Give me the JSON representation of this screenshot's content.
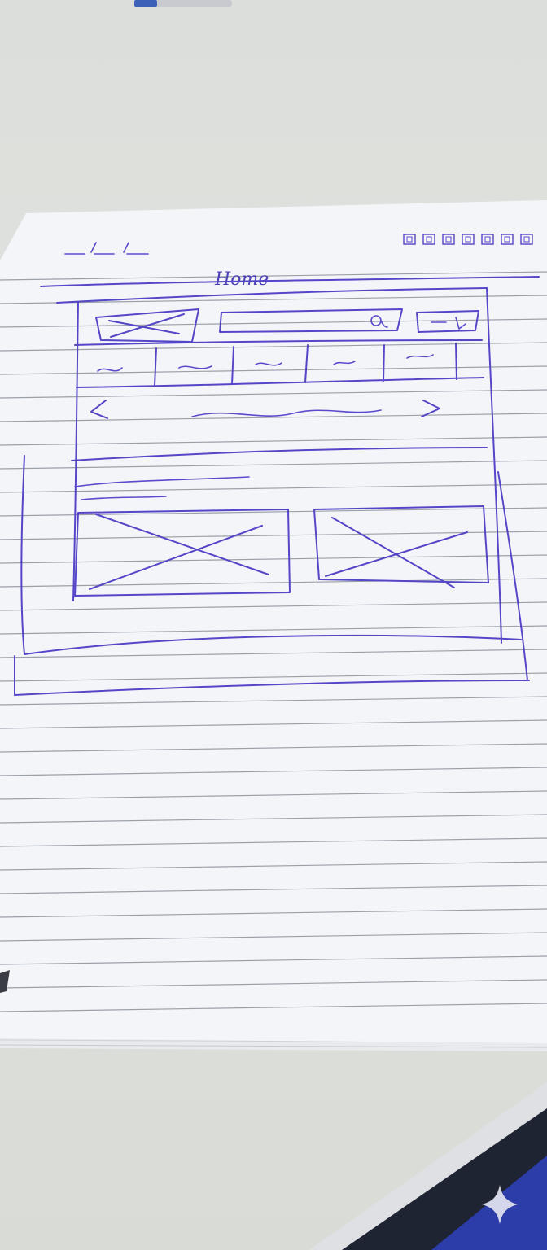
{
  "page_title": "Home",
  "colors": {
    "desk": "#dcdedb",
    "paper": "#f3f4f6",
    "ink": "#5546c8",
    "rule_lines": "#9aa0a8",
    "pen_blue": "#3c5fb8",
    "dark_object": "#1a1f3a"
  },
  "sketch": {
    "window_controls_count": 7,
    "nav_tab_count": 5,
    "image_placeholder_count": 2
  },
  "icons": {
    "search": "search-icon",
    "carousel_prev": "chevron-left-icon",
    "carousel_next": "chevron-right-icon",
    "sparkle": "sparkle-icon"
  }
}
